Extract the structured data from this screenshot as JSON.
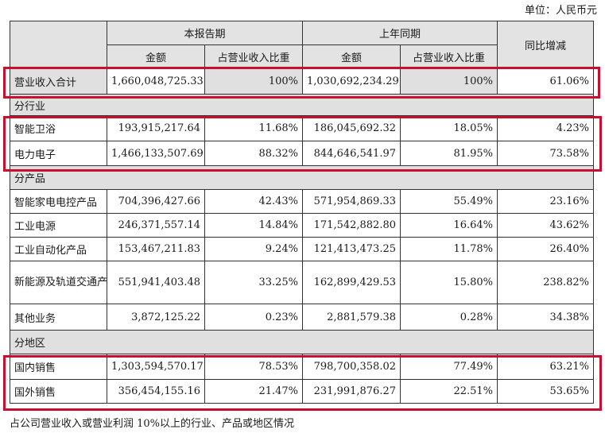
{
  "unit": "单位：人民币元",
  "header": {
    "current_period": "本报告期",
    "prior_period": "上年同期",
    "yoy": "同比增减",
    "amount": "金额",
    "ratio": "占营业收入比重"
  },
  "total": {
    "label": "营业收入合计",
    "cur": "1,660,048,725.33",
    "cur_pct": "100%",
    "prior": "1,030,692,234.29",
    "prior_pct": "100%",
    "yoy": "61.06%"
  },
  "sections": [
    {
      "title": "分行业",
      "rows": [
        {
          "label": "智能卫浴",
          "cur": "193,915,217.64",
          "cur_pct": "11.68%",
          "prior": "186,045,692.32",
          "prior_pct": "18.05%",
          "yoy": "4.23%"
        },
        {
          "label": "电力电子",
          "cur": "1,466,133,507.69",
          "cur_pct": "88.32%",
          "prior": "844,646,541.97",
          "prior_pct": "81.95%",
          "yoy": "73.58%"
        }
      ]
    },
    {
      "title": "分产品",
      "rows": [
        {
          "label": "智能家电电控产品",
          "cur": "704,396,427.66",
          "cur_pct": "42.43%",
          "prior": "571,954,869.33",
          "prior_pct": "55.49%",
          "yoy": "23.16%"
        },
        {
          "label": "工业电源",
          "cur": "246,371,557.14",
          "cur_pct": "14.84%",
          "prior": "171,542,882.80",
          "prior_pct": "16.64%",
          "yoy": "43.62%"
        },
        {
          "label": "工业自动化产品",
          "cur": "153,467,211.83",
          "cur_pct": "9.24%",
          "prior": "121,413,473.25",
          "prior_pct": "11.78%",
          "yoy": "26.40%"
        },
        {
          "label": "新能源及轨道交通产品",
          "cur": "551,941,403.48",
          "cur_pct": "33.25%",
          "prior": "162,899,429.53",
          "prior_pct": "15.80%",
          "yoy": "238.82%"
        },
        {
          "label": "其他业务",
          "cur": "3,872,125.22",
          "cur_pct": "0.23%",
          "prior": "2,881,579.38",
          "prior_pct": "0.28%",
          "yoy": "34.38%"
        }
      ]
    },
    {
      "title": "分地区",
      "rows": [
        {
          "label": "国内销售",
          "cur": "1,303,594,570.17",
          "cur_pct": "78.53%",
          "prior": "798,700,358.02",
          "prior_pct": "77.49%",
          "yoy": "63.21%"
        },
        {
          "label": "国外销售",
          "cur": "356,454,155.16",
          "cur_pct": "21.47%",
          "prior": "231,991,876.27",
          "prior_pct": "22.51%",
          "yoy": "53.65%"
        }
      ]
    }
  ],
  "footnote": "占公司营业收入或营业利润 10%以上的行业、产品或地区情况",
  "highlight_color": "#c8102e"
}
